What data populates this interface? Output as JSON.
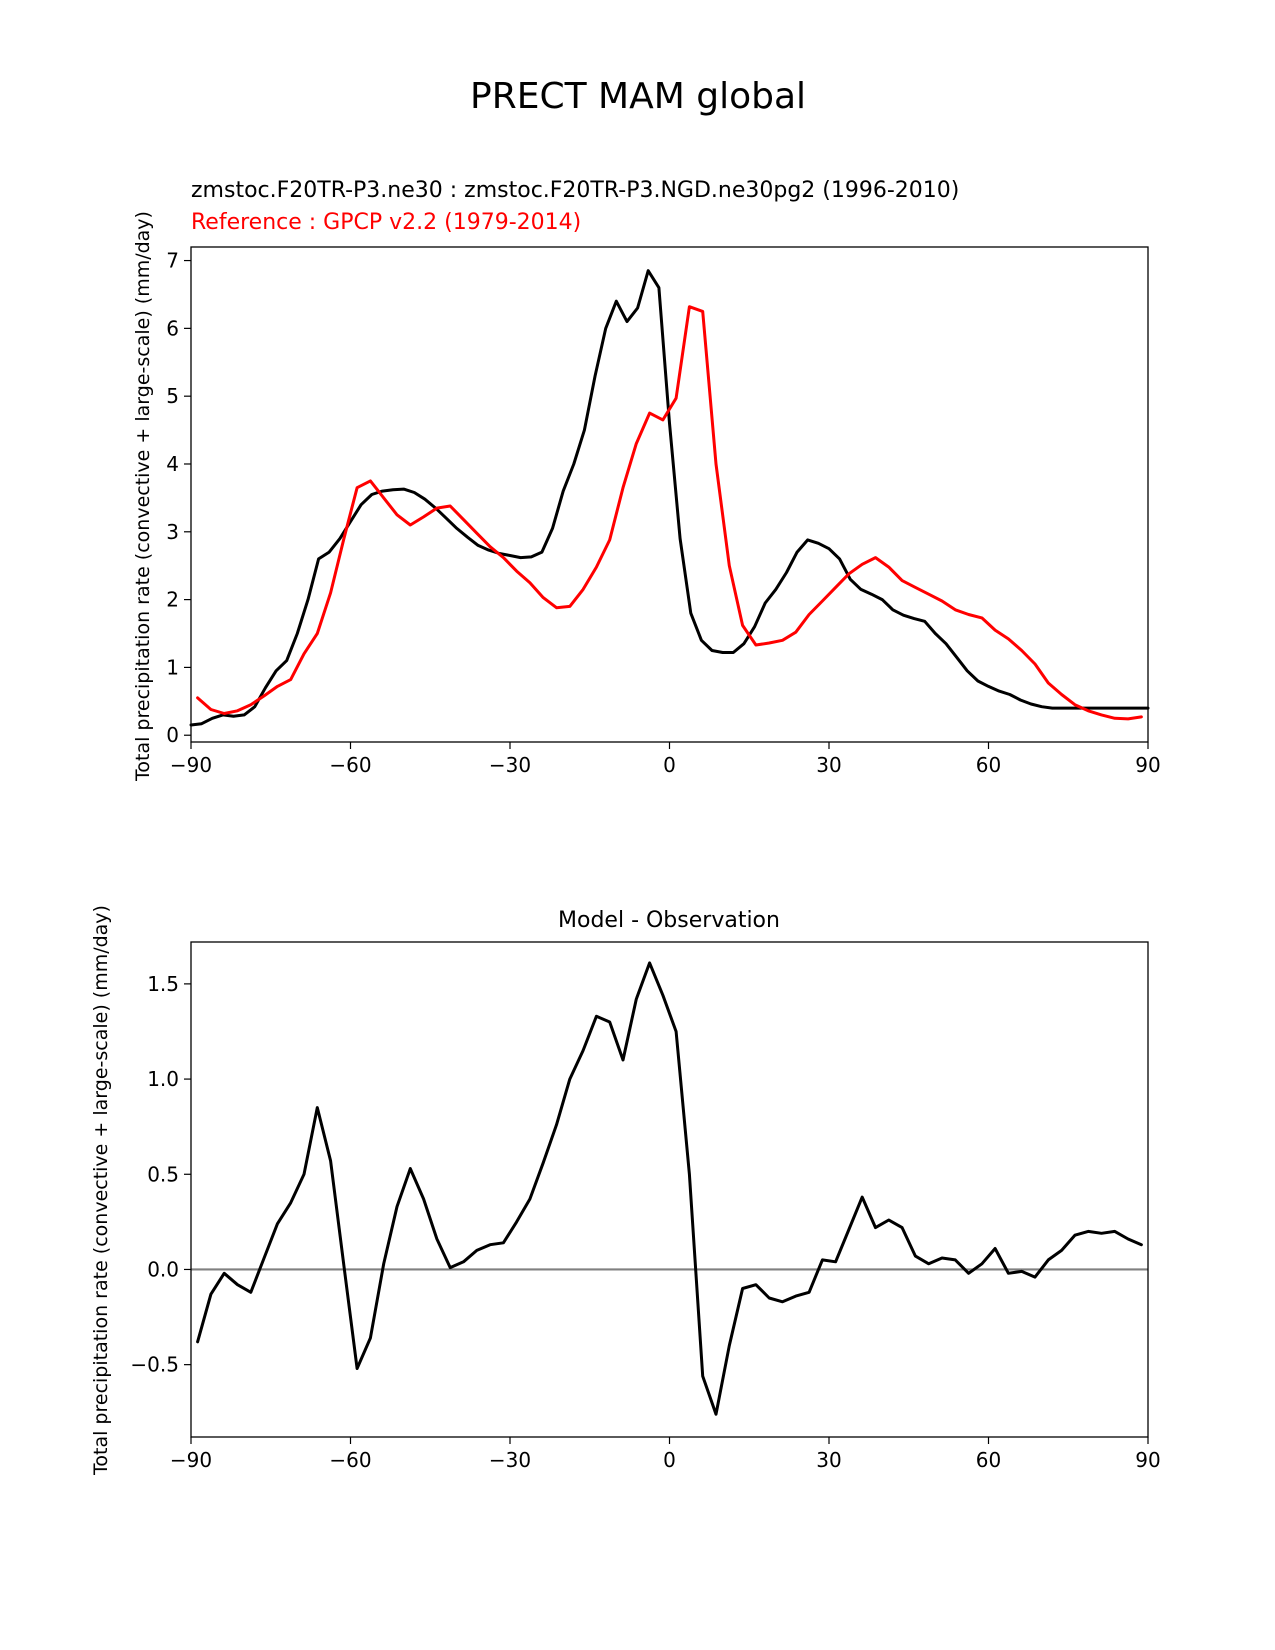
{
  "figure": {
    "title": "PRECT MAM global"
  },
  "chart_data": [
    {
      "type": "line",
      "title_left": "zmstoc.F20TR-P3.ne30 : zmstoc.F20TR-P3.NGD.ne30pg2 (1996-2010)",
      "title_ref": "Reference : GPCP v2.2 (1979-2014)",
      "ylabel": "Total precipitation rate (convective + large-scale) (mm/day)",
      "xlim": [
        -90,
        90
      ],
      "ylim": [
        -0.1,
        7.2
      ],
      "xticks": [
        -90,
        -60,
        -30,
        0,
        30,
        60,
        90
      ],
      "xtick_labels": [
        "−90",
        "−60",
        "−30",
        "0",
        "30",
        "60",
        "90"
      ],
      "yticks": [
        0,
        1,
        2,
        3,
        4,
        5,
        6,
        7
      ],
      "ytick_labels": [
        "0",
        "1",
        "2",
        "3",
        "4",
        "5",
        "6",
        "7"
      ],
      "colors": {
        "test": "#000000",
        "reference": "#ff0000"
      },
      "series": [
        {
          "color": "#000000",
          "x": [
            -90,
            -88,
            -86,
            -84,
            -82,
            -80,
            -78,
            -76,
            -74,
            -72,
            -70,
            -68,
            -66,
            -64,
            -62,
            -60,
            -58,
            -56,
            -54,
            -52,
            -50,
            -48,
            -46,
            -44,
            -42,
            -40,
            -38,
            -36,
            -34,
            -32,
            -30,
            -28,
            -26,
            -24,
            -22,
            -20,
            -18,
            -16,
            -14,
            -12,
            -10,
            -8,
            -6,
            -4,
            -2,
            0,
            2,
            4,
            6,
            8,
            10,
            12,
            14,
            16,
            18,
            20,
            22,
            24,
            26,
            28,
            30,
            32,
            34,
            36,
            38,
            40,
            42,
            44,
            46,
            48,
            50,
            52,
            54,
            56,
            58,
            60,
            62,
            64,
            66,
            68,
            70,
            72,
            74,
            76,
            78,
            80,
            82,
            84,
            86,
            88,
            90
          ],
          "values": [
            0.15,
            0.17,
            0.25,
            0.3,
            0.28,
            0.3,
            0.42,
            0.7,
            0.95,
            1.1,
            1.5,
            2.0,
            2.6,
            2.7,
            2.9,
            3.15,
            3.4,
            3.55,
            3.6,
            3.62,
            3.63,
            3.58,
            3.48,
            3.35,
            3.2,
            3.05,
            2.92,
            2.8,
            2.73,
            2.68,
            2.65,
            2.62,
            2.63,
            2.7,
            3.05,
            3.6,
            4.0,
            4.5,
            5.3,
            6.0,
            6.4,
            6.1,
            6.3,
            6.85,
            6.6,
            4.6,
            2.9,
            1.8,
            1.4,
            1.25,
            1.22,
            1.22,
            1.35,
            1.6,
            1.95,
            2.15,
            2.4,
            2.7,
            2.88,
            2.83,
            2.75,
            2.6,
            2.3,
            2.15,
            2.08,
            2.0,
            1.85,
            1.77,
            1.72,
            1.68,
            1.5,
            1.35,
            1.15,
            0.95,
            0.8,
            0.72,
            0.65,
            0.6,
            0.52,
            0.46,
            0.42,
            0.4,
            0.4,
            0.4,
            0.4,
            0.4,
            0.4,
            0.4,
            0.4,
            0.4,
            0.4
          ],
          "x_note": ""
        },
        {
          "color": "#ff0000",
          "x": [
            -88.75,
            -86.25,
            -83.75,
            -81.25,
            -78.75,
            -76.25,
            -73.75,
            -71.25,
            -68.75,
            -66.25,
            -63.75,
            -61.25,
            -58.75,
            -56.25,
            -53.75,
            -51.25,
            -48.75,
            -46.25,
            -43.75,
            -41.25,
            -38.75,
            -36.25,
            -33.75,
            -31.25,
            -28.75,
            -26.25,
            -23.75,
            -21.25,
            -18.75,
            -16.25,
            -13.75,
            -11.25,
            -8.75,
            -6.25,
            -3.75,
            -1.25,
            1.25,
            3.75,
            6.25,
            8.75,
            11.25,
            13.75,
            16.25,
            18.75,
            21.25,
            23.75,
            26.25,
            28.75,
            31.25,
            33.75,
            36.25,
            38.75,
            41.25,
            43.75,
            46.25,
            48.75,
            51.25,
            53.75,
            56.25,
            58.75,
            61.25,
            63.75,
            66.25,
            68.75,
            71.25,
            73.75,
            76.25,
            78.75,
            81.25,
            83.75,
            86.25,
            88.75
          ],
          "values": [
            0.55,
            0.38,
            0.32,
            0.36,
            0.45,
            0.58,
            0.72,
            0.82,
            1.2,
            1.5,
            2.1,
            2.9,
            3.65,
            3.75,
            3.5,
            3.25,
            3.1,
            3.22,
            3.35,
            3.38,
            3.18,
            2.98,
            2.78,
            2.62,
            2.42,
            2.25,
            2.03,
            1.88,
            1.9,
            2.15,
            2.48,
            2.88,
            3.65,
            4.3,
            4.75,
            4.65,
            4.97,
            6.32,
            6.25,
            4.0,
            2.5,
            1.62,
            1.33,
            1.36,
            1.4,
            1.52,
            1.78,
            1.98,
            2.18,
            2.38,
            2.52,
            2.62,
            2.48,
            2.28,
            2.18,
            2.08,
            1.98,
            1.85,
            1.78,
            1.73,
            1.55,
            1.42,
            1.25,
            1.05,
            0.77,
            0.6,
            0.45,
            0.36,
            0.3,
            0.25,
            0.24,
            0.27
          ]
        }
      ]
    },
    {
      "type": "line",
      "title": "Model - Observation",
      "ylabel": "Total precipitation rate (convective + large-scale) (mm/day)",
      "xlim": [
        -90,
        90
      ],
      "ylim": [
        -0.88,
        1.72
      ],
      "xticks": [
        -90,
        -60,
        -30,
        0,
        30,
        60,
        90
      ],
      "xtick_labels": [
        "−90",
        "−60",
        "−30",
        "0",
        "30",
        "60",
        "90"
      ],
      "yticks": [
        -0.5,
        0.0,
        0.5,
        1.0,
        1.5
      ],
      "ytick_labels": [
        "−0.5",
        "0.0",
        "0.5",
        "1.0",
        "1.5"
      ],
      "zero_line_color": "#808080",
      "series": [
        {
          "color": "#000000",
          "x": [
            -88.75,
            -86.25,
            -83.75,
            -81.25,
            -78.75,
            -76.25,
            -73.75,
            -71.25,
            -68.75,
            -66.25,
            -63.75,
            -61.25,
            -58.75,
            -56.25,
            -53.75,
            -51.25,
            -48.75,
            -46.25,
            -43.75,
            -41.25,
            -38.75,
            -36.25,
            -33.75,
            -31.25,
            -28.75,
            -26.25,
            -23.75,
            -21.25,
            -18.75,
            -16.25,
            -13.75,
            -11.25,
            -8.75,
            -6.25,
            -3.75,
            -1.25,
            1.25,
            3.75,
            6.25,
            8.75,
            11.25,
            13.75,
            16.25,
            18.75,
            21.25,
            23.75,
            26.25,
            28.75,
            31.25,
            33.75,
            36.25,
            38.75,
            41.25,
            43.75,
            46.25,
            48.75,
            51.25,
            53.75,
            56.25,
            58.75,
            61.25,
            63.75,
            66.25,
            68.75,
            71.25,
            73.75,
            76.25,
            78.75,
            81.25,
            83.75,
            86.25,
            88.75
          ],
          "values": [
            -0.38,
            -0.13,
            -0.02,
            -0.08,
            -0.12,
            0.06,
            0.24,
            0.35,
            0.5,
            0.85,
            0.57,
            0.02,
            -0.52,
            -0.36,
            0.03,
            0.33,
            0.53,
            0.37,
            0.16,
            0.01,
            0.04,
            0.1,
            0.13,
            0.14,
            0.25,
            0.37,
            0.56,
            0.76,
            1.0,
            1.15,
            1.33,
            1.3,
            1.1,
            1.42,
            1.61,
            1.44,
            1.25,
            0.5,
            -0.56,
            -0.76,
            -0.4,
            -0.1,
            -0.08,
            -0.15,
            -0.17,
            -0.14,
            -0.12,
            0.05,
            0.04,
            0.21,
            0.38,
            0.22,
            0.26,
            0.22,
            0.07,
            0.03,
            0.06,
            0.05,
            -0.02,
            0.03,
            0.11,
            -0.02,
            -0.01,
            -0.04,
            0.05,
            0.1,
            0.18,
            0.2,
            0.19,
            0.2,
            0.16,
            0.13
          ]
        }
      ]
    }
  ]
}
